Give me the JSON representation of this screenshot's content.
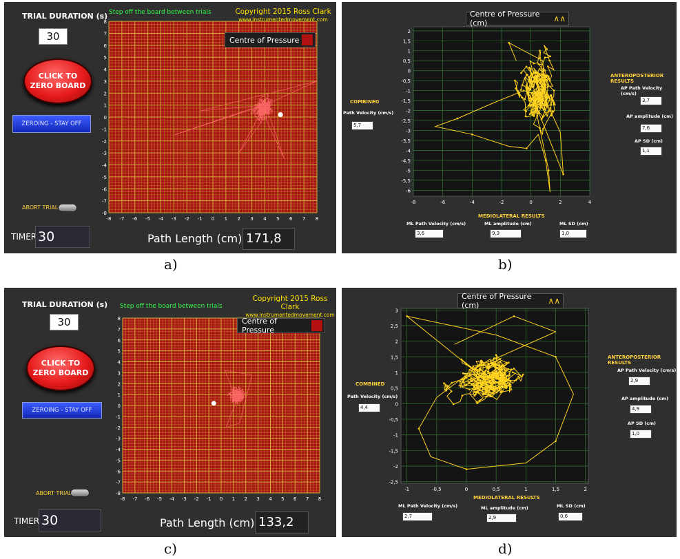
{
  "captions": [
    "a)",
    "b)",
    "c)",
    "d)"
  ],
  "app": {
    "trial_duration_label": "TRIAL DURATION (s)",
    "zero_button_line1": "CLICK TO",
    "zero_button_line2": "ZERO BOARD",
    "zeroing_status": "ZEROING - STAY OFF",
    "abort_label": "ABORT TRIAL",
    "timer_label": "TIMER",
    "step_message": "Step off the board between trials",
    "copyright": "Copyright 2015 Ross Clark",
    "website": "www.instrumentedmovement.com",
    "plot_legend": "Centre of Pressure",
    "path_length_label": "Path Length (cm)",
    "axis_ticks": [
      "-8",
      "-7",
      "-6",
      "-5",
      "-4",
      "-3",
      "-2",
      "-1",
      "0",
      "1",
      "2",
      "3",
      "4",
      "5",
      "6",
      "7",
      "8"
    ]
  },
  "trial_a": {
    "duration": "30",
    "timer": "30",
    "path_length": "171,8"
  },
  "trial_c": {
    "duration": "30",
    "timer": "30",
    "path_length": "133,2"
  },
  "results": {
    "plot_legend": "Centre of Pressure (cm)",
    "combined_title": "COMBINED",
    "path_velocity_label": "Path Velocity (cm/s)",
    "ap_title": "ANTEROPOSTERIOR RESULTS",
    "ap_path_velocity_label": "AP Path Velocity (cm/s)",
    "ap_amplitude_label": "AP amplitude (cm)",
    "ap_sd_label": "AP SD (cm)",
    "ml_title": "MEDIOLATERAL RESULTS",
    "ml_path_velocity_label": "ML Path Velocity (cm/s)",
    "ml_amplitude_label": "ML amplitude (cm)",
    "ml_sd_label": "ML SD (cm)"
  },
  "results_b": {
    "path_velocity": "5,7",
    "ap_path_velocity": "3,7",
    "ap_amplitude": "7,6",
    "ap_sd": "1,1",
    "ml_path_velocity": "3,6",
    "ml_amplitude": "9,3",
    "ml_sd": "1,0",
    "x_ticks": [
      "-8",
      "-6",
      "-4",
      "-2",
      "0",
      "2",
      "4"
    ],
    "y_ticks": [
      "2",
      "1,5",
      "1",
      "0,5",
      "0",
      "-0,5",
      "-1",
      "-1,5",
      "-2",
      "-2,5",
      "-3",
      "-3,5",
      "-4",
      "-4,5",
      "-5",
      "-5,5",
      "-6"
    ]
  },
  "results_d": {
    "path_velocity": "4,4",
    "ap_path_velocity": "2,9",
    "ap_amplitude": "4,9",
    "ap_sd": "1,0",
    "ml_path_velocity": "2,7",
    "ml_amplitude": "2,9",
    "ml_sd": "0,6",
    "x_ticks": [
      "-1",
      "-0,5",
      "0",
      "0,5",
      "1",
      "1,5",
      "2"
    ],
    "y_ticks": [
      "3",
      "2,5",
      "2",
      "1,5",
      "1",
      "0,5",
      "0",
      "-0,5",
      "-1",
      "-1,5",
      "-2",
      "-2,5"
    ]
  },
  "colors": {
    "grid_red": "#a81515",
    "grid_yellow": "#d9c23a",
    "trace_pink": "#ff6a6a",
    "trace_yellow": "#ffd21e",
    "results_grid": "#2f6b2f"
  }
}
